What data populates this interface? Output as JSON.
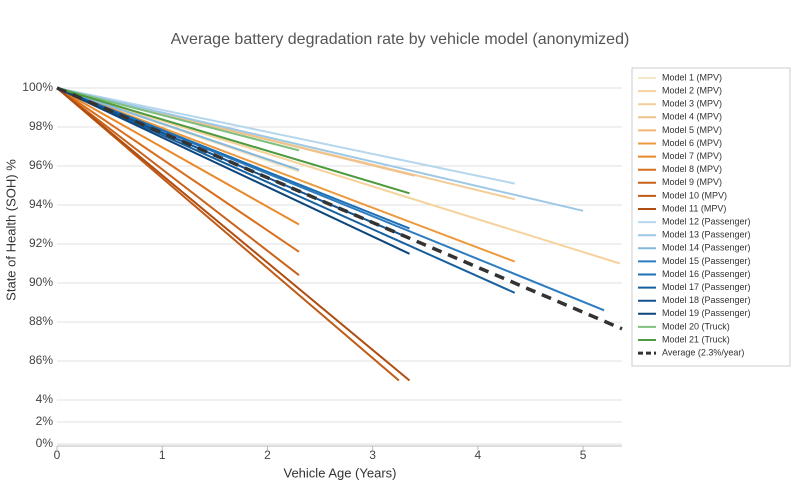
{
  "chart_data": {
    "type": "line",
    "title": "Average battery degradation rate by vehicle model (anonymized)",
    "x_label": "Vehicle Age (Years)",
    "y_label": "State of Health (SOH) %",
    "xlim": [
      0,
      5.37
    ],
    "xticks": [
      0,
      1,
      2,
      3,
      4,
      5
    ],
    "yticks": [
      {
        "value": 100,
        "label": "100%"
      },
      {
        "value": 98,
        "label": "98%"
      },
      {
        "value": 96,
        "label": "96%"
      },
      {
        "value": 94,
        "label": "94%"
      },
      {
        "value": 92,
        "label": "92%"
      },
      {
        "value": 90,
        "label": "90%"
      },
      {
        "value": 88,
        "label": "88%"
      },
      {
        "value": 86,
        "label": "86%"
      },
      {
        "value": 4,
        "label": "4%"
      },
      {
        "value": 2,
        "label": "2%"
      },
      {
        "value": 0,
        "label": "0%"
      }
    ],
    "grid": true,
    "legend": "right",
    "series": [
      {
        "name": "Model 1 (MPV)",
        "color": "#f7e7c6",
        "x": [
          0,
          2.3
        ],
        "values": [
          100,
          95.7
        ]
      },
      {
        "name": "Model 2 (MPV)",
        "color": "#f6d29c",
        "x": [
          0,
          5.35
        ],
        "values": [
          100,
          91.0
        ]
      },
      {
        "name": "Model 3 (MPV)",
        "color": "#f3cd9a",
        "x": [
          0,
          4.35
        ],
        "values": [
          100,
          94.3
        ]
      },
      {
        "name": "Model 4 (MPV)",
        "color": "#efc28c",
        "x": [
          0,
          3.4
        ],
        "values": [
          100,
          95.5
        ]
      },
      {
        "name": "Model 5 (MPV)",
        "color": "#efb674",
        "x": [
          0,
          2.3
        ],
        "values": [
          100,
          95.8
        ]
      },
      {
        "name": "Model 6 (MPV)",
        "color": "#ec9a3f",
        "x": [
          0,
          4.35
        ],
        "values": [
          100,
          91.1
        ]
      },
      {
        "name": "Model 7 (MPV)",
        "color": "#e88a2a",
        "x": [
          0,
          2.3
        ],
        "values": [
          100,
          93.0
        ]
      },
      {
        "name": "Model 8 (MPV)",
        "color": "#d86f1e",
        "x": [
          0,
          2.3
        ],
        "values": [
          100,
          91.6
        ]
      },
      {
        "name": "Model 9 (MPV)",
        "color": "#c8621a",
        "x": [
          0,
          2.3
        ],
        "values": [
          100,
          90.4
        ]
      },
      {
        "name": "Model 10 (MPV)",
        "color": "#bf5b16",
        "x": [
          0,
          3.25
        ],
        "values": [
          100,
          85.0
        ]
      },
      {
        "name": "Model 11 (MPV)",
        "color": "#b04d10",
        "x": [
          0,
          3.35
        ],
        "values": [
          100,
          85.0
        ]
      },
      {
        "name": "Model 12 (Passenger)",
        "color": "#b5d6ec",
        "x": [
          0,
          4.35
        ],
        "values": [
          100,
          95.1
        ]
      },
      {
        "name": "Model 13 (Passenger)",
        "color": "#9cc8e6",
        "x": [
          0,
          5.0
        ],
        "values": [
          100,
          93.7
        ]
      },
      {
        "name": "Model 14 (Passenger)",
        "color": "#85bade",
        "x": [
          0,
          2.3
        ],
        "values": [
          100,
          95.8
        ]
      },
      {
        "name": "Model 15 (Passenger)",
        "color": "#2d7cc0",
        "x": [
          0,
          5.2
        ],
        "values": [
          100,
          88.6
        ]
      },
      {
        "name": "Model 16 (Passenger)",
        "color": "#1f6fb4",
        "x": [
          0,
          3.35
        ],
        "values": [
          100,
          92.8
        ]
      },
      {
        "name": "Model 17 (Passenger)",
        "color": "#17609f",
        "x": [
          0,
          4.35
        ],
        "values": [
          100,
          89.5
        ]
      },
      {
        "name": "Model 18 (Passenger)",
        "color": "#12538f",
        "x": [
          0,
          3.35
        ],
        "values": [
          100,
          92.3
        ]
      },
      {
        "name": "Model 19 (Passenger)",
        "color": "#0d467c",
        "x": [
          0,
          3.35
        ],
        "values": [
          100,
          91.5
        ]
      },
      {
        "name": "Model 20 (Truck)",
        "color": "#7fbf7f",
        "x": [
          0,
          2.3
        ],
        "values": [
          100,
          96.8
        ]
      },
      {
        "name": "Model 21 (Truck)",
        "color": "#4f9a3f",
        "x": [
          0,
          3.35
        ],
        "values": [
          100,
          94.6
        ]
      },
      {
        "name": "Average (2.3%/year)",
        "color": "#333333",
        "dash": true,
        "x": [
          0,
          5.37
        ],
        "values": [
          100,
          87.65
        ]
      }
    ]
  }
}
